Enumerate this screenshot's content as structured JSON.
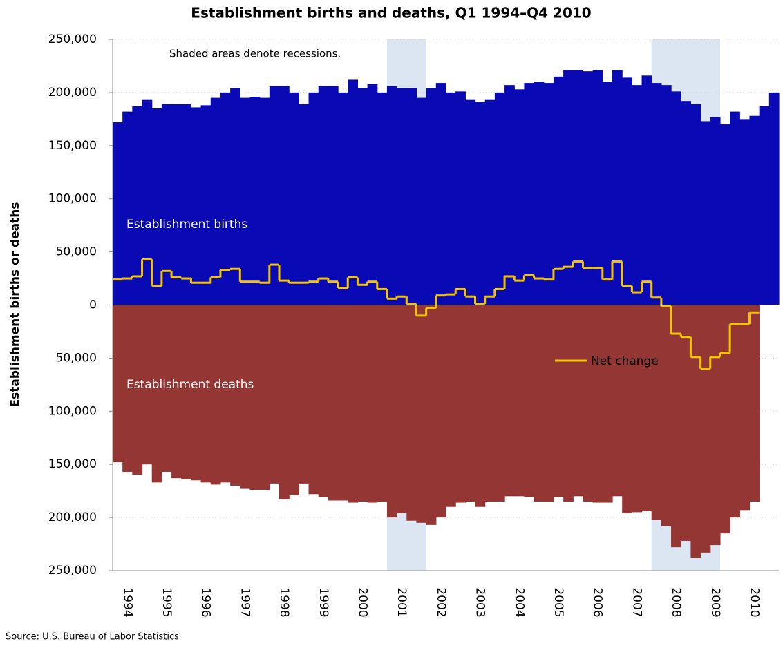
{
  "chart_data": {
    "type": "area",
    "title": "Establishment births and deaths, Q1 1994–Q4 2010",
    "y_label": "Establishment births or deaths",
    "source": "Source:  U.S. Bureau of Labor Statistics",
    "annotations": [
      "Shaded areas denote recessions.",
      "Establishment births",
      "Establishment deaths"
    ],
    "shaded_periods": [
      [
        28,
        31
      ],
      [
        55,
        61
      ]
    ],
    "categories": [
      null,
      "1994",
      null,
      null,
      null,
      "1995",
      null,
      null,
      null,
      "1996",
      null,
      null,
      null,
      "1997",
      null,
      null,
      null,
      "1998",
      null,
      null,
      null,
      "1999",
      null,
      null,
      null,
      "2000",
      null,
      null,
      null,
      "2001",
      null,
      null,
      null,
      "2002",
      null,
      null,
      null,
      "2003",
      null,
      null,
      null,
      "2004",
      null,
      null,
      null,
      "2005",
      null,
      null,
      null,
      "2006",
      null,
      null,
      null,
      "2007",
      null,
      null,
      null,
      "2008",
      null,
      null,
      null,
      "2009",
      null,
      null,
      null,
      "2010",
      null,
      null
    ],
    "series": [
      {
        "name": "Establishment births",
        "color": "#0a0ab4",
        "values": [
          172000,
          182000,
          187000,
          193000,
          185000,
          189000,
          189000,
          189000,
          186000,
          188000,
          195000,
          200000,
          204000,
          195000,
          196000,
          195000,
          206000,
          206000,
          200000,
          189000,
          200000,
          206000,
          206000,
          200000,
          212000,
          204000,
          208000,
          200000,
          206000,
          204000,
          204000,
          195000,
          204000,
          209000,
          200000,
          201000,
          193000,
          191000,
          193000,
          200000,
          207000,
          203000,
          209000,
          210000,
          209000,
          215000,
          221000,
          221000,
          220000,
          221000,
          210000,
          221000,
          214000,
          207000,
          216000,
          209000,
          207000,
          201000,
          192000,
          189000,
          173000,
          177000,
          170000,
          182000,
          175000,
          178000,
          187000,
          200000
        ]
      },
      {
        "name": "Establishment deaths",
        "color": "#943634",
        "values": [
          -148000,
          -157000,
          -160000,
          -150000,
          -167000,
          -157000,
          -163000,
          -164000,
          -165000,
          -167000,
          -169000,
          -167000,
          -170000,
          -173000,
          -174000,
          -174000,
          -168000,
          -183000,
          -179000,
          -168000,
          -178000,
          -181000,
          -184000,
          -184000,
          -186000,
          -185000,
          -186000,
          -185000,
          -200000,
          -196000,
          -203000,
          -205000,
          -207000,
          -200000,
          -190000,
          -186000,
          -185000,
          -190000,
          -185000,
          -185000,
          -180000,
          -180000,
          -181000,
          -185000,
          -185000,
          -181000,
          -185000,
          -180000,
          -185000,
          -186000,
          -186000,
          -180000,
          -196000,
          -195000,
          -194000,
          -202000,
          -208000,
          -228000,
          -222000,
          -238000,
          -233000,
          -226000,
          -215000,
          -200000,
          -193000,
          -185000,
          null,
          null
        ]
      },
      {
        "name": "Net change",
        "color": "#f5c400",
        "kind": "step",
        "values": [
          24000,
          25000,
          27000,
          43000,
          18000,
          32000,
          26000,
          25000,
          21000,
          21000,
          26000,
          33000,
          34000,
          22000,
          22000,
          21000,
          38000,
          23000,
          21000,
          21000,
          22000,
          25000,
          22000,
          16000,
          26000,
          19000,
          22000,
          15000,
          6000,
          8000,
          1000,
          -10000,
          -3000,
          9000,
          10000,
          15000,
          8000,
          1000,
          8000,
          15000,
          27000,
          23000,
          28000,
          25000,
          24000,
          34000,
          36000,
          41000,
          35000,
          35000,
          24000,
          41000,
          18000,
          12000,
          22000,
          7000,
          -1000,
          -27000,
          -30000,
          -49000,
          -60000,
          -49000,
          -45000,
          -18000,
          -18000,
          -7000,
          null,
          null
        ]
      }
    ],
    "ylim": [
      -250000,
      250000
    ],
    "yticks": [
      {
        "value": -250000,
        "label": "250,000"
      },
      {
        "value": -200000,
        "label": "200,000"
      },
      {
        "value": -150000,
        "label": "150,000"
      },
      {
        "value": -100000,
        "label": "100,000"
      },
      {
        "value": -50000,
        "label": "50,000"
      },
      0,
      {
        "value": 50000,
        "label": "50,000"
      },
      {
        "value": 100000,
        "label": "100,000"
      },
      {
        "value": 150000,
        "label": "150,000"
      },
      {
        "value": 200000,
        "label": "200,000"
      },
      {
        "value": 250000,
        "label": "250,000"
      }
    ],
    "grid": true
  }
}
